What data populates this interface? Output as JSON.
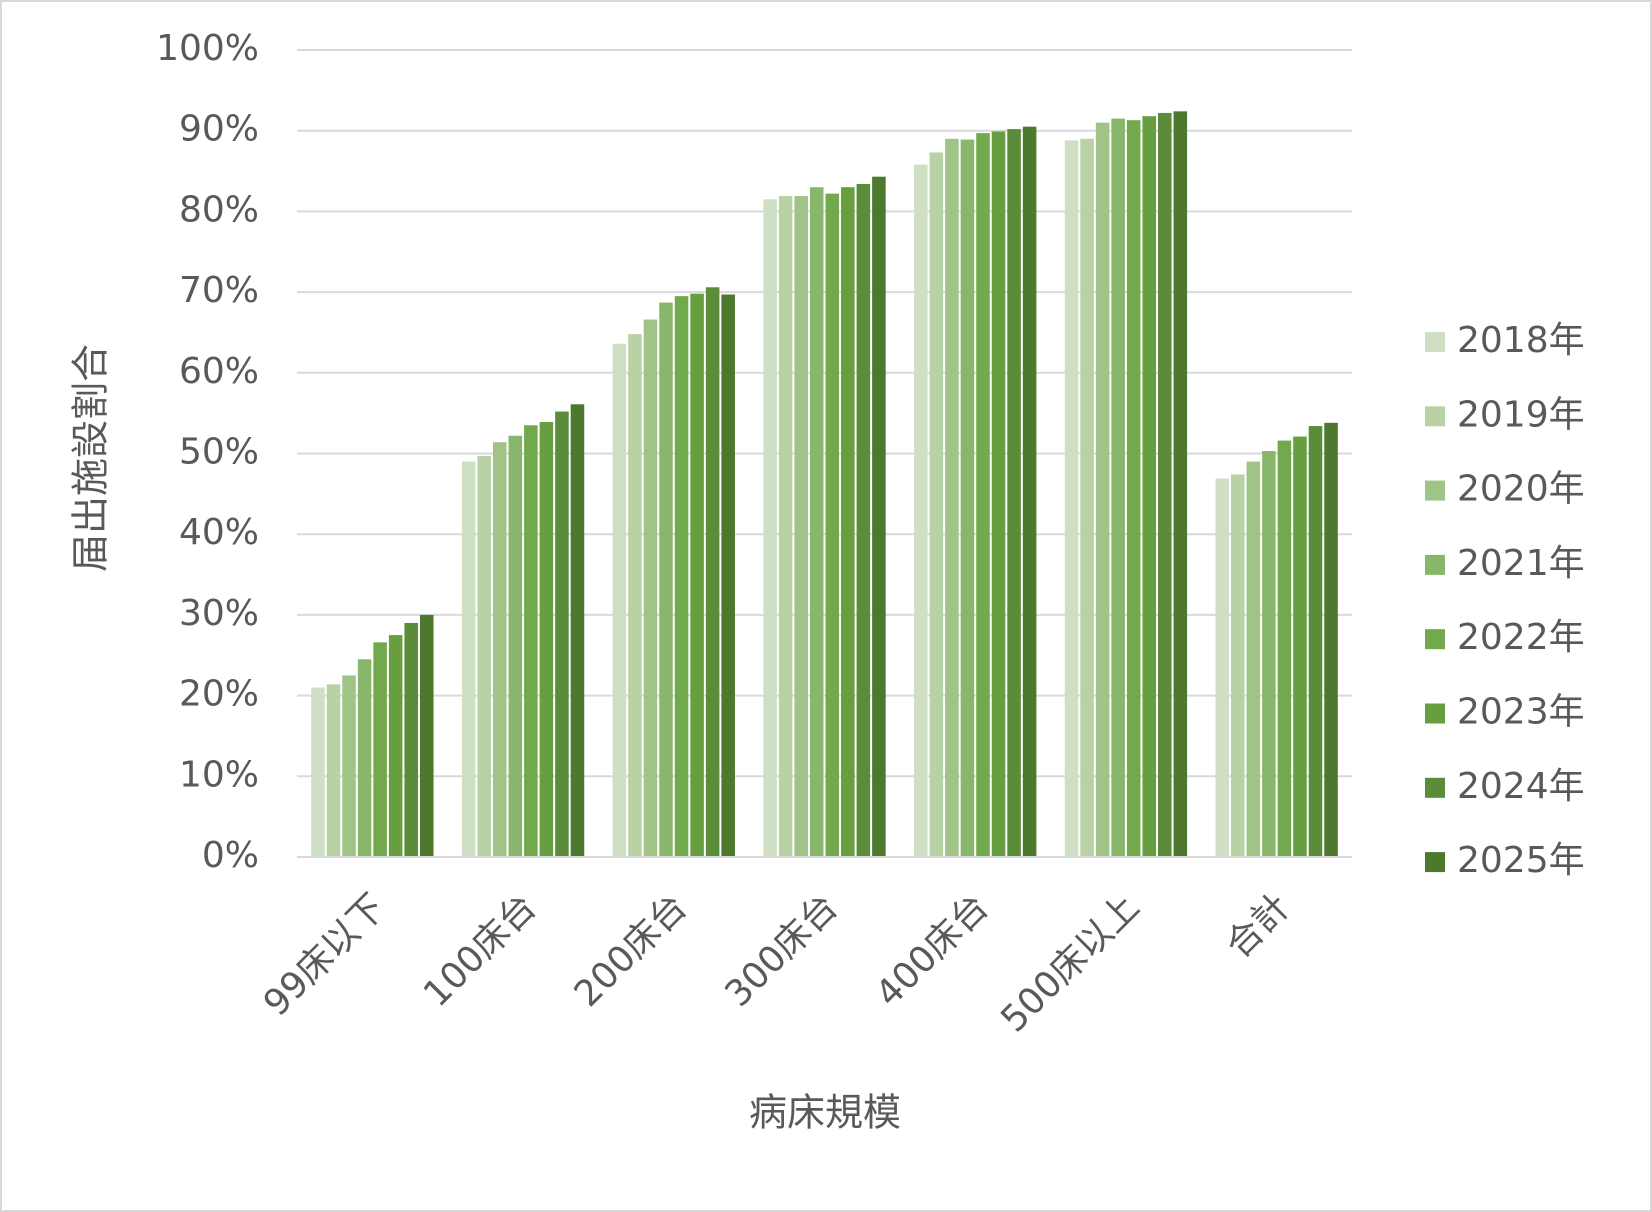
{
  "chart_data": {
    "type": "bar",
    "x_label": "病床規模",
    "y_label": "届出施設割合",
    "categories": [
      "99床以下",
      "100床台",
      "200床台",
      "300床台",
      "400床台",
      "500床以上",
      "合計"
    ],
    "series": [
      {
        "name": "2018年",
        "color": "#cfdfc3",
        "values": [
          21.0,
          49.0,
          63.6,
          81.5,
          85.8,
          88.8,
          46.9
        ]
      },
      {
        "name": "2019年",
        "color": "#b8d2a6",
        "values": [
          21.4,
          49.7,
          64.8,
          81.9,
          87.3,
          89.0,
          47.4
        ]
      },
      {
        "name": "2020年",
        "color": "#a0c388",
        "values": [
          22.5,
          51.4,
          66.6,
          81.9,
          89.0,
          91.0,
          49.0
        ]
      },
      {
        "name": "2021年",
        "color": "#88b76c",
        "values": [
          24.5,
          52.2,
          68.7,
          83.0,
          88.9,
          91.5,
          50.3
        ]
      },
      {
        "name": "2022年",
        "color": "#72a94c",
        "values": [
          26.6,
          53.5,
          69.5,
          82.2,
          89.7,
          91.3,
          51.6
        ]
      },
      {
        "name": "2023年",
        "color": "#679e40",
        "values": [
          27.5,
          53.9,
          69.8,
          83.0,
          89.9,
          91.8,
          52.1
        ]
      },
      {
        "name": "2024年",
        "color": "#5a8c39",
        "values": [
          29.0,
          55.2,
          70.6,
          83.4,
          90.2,
          92.2,
          53.4
        ]
      },
      {
        "name": "2025年",
        "color": "#4c792e",
        "values": [
          30.0,
          56.1,
          69.7,
          84.3,
          90.5,
          92.4,
          53.8
        ]
      }
    ],
    "ylim": [
      0,
      100
    ],
    "yticks": [
      {
        "value": 0,
        "label": "0%"
      },
      {
        "value": 10,
        "label": "10%"
      },
      {
        "value": 20,
        "label": "20%"
      },
      {
        "value": 30,
        "label": "30%"
      },
      {
        "value": 40,
        "label": "40%"
      },
      {
        "value": 50,
        "label": "50%"
      },
      {
        "value": 60,
        "label": "60%"
      },
      {
        "value": 70,
        "label": "70%"
      },
      {
        "value": 80,
        "label": "80%"
      },
      {
        "value": 90,
        "label": "90%"
      },
      {
        "value": 100,
        "label": "100%"
      }
    ],
    "grid": true,
    "legend_position": "right"
  }
}
